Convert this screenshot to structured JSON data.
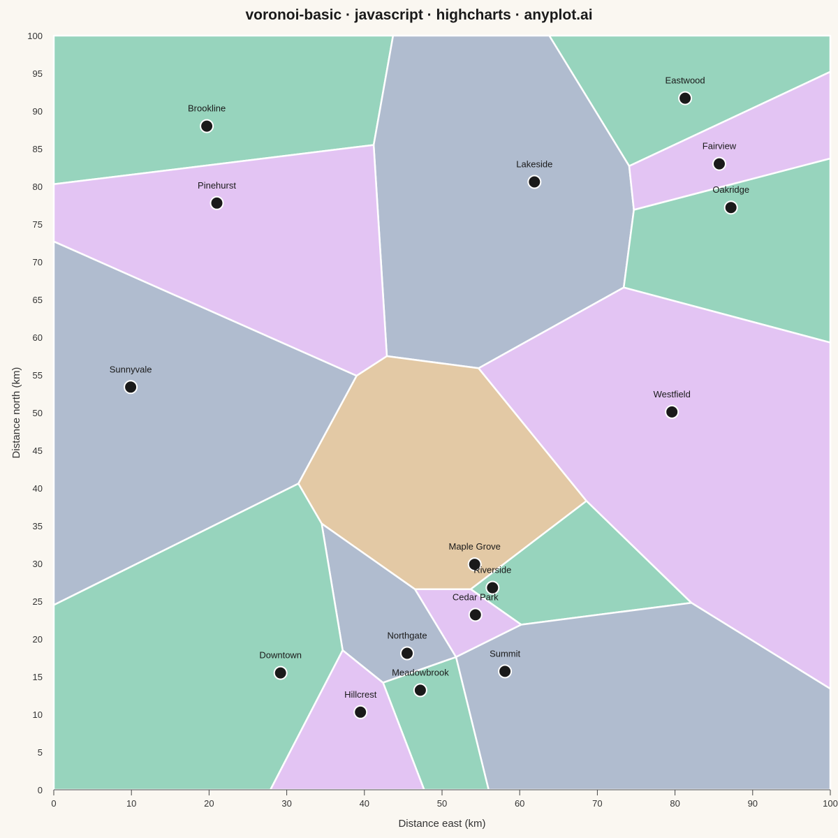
{
  "chart_data": {
    "type": "voronoi",
    "title": "voronoi-basic · javascript · highcharts · anyplot.ai",
    "xlabel": "Distance east (km)",
    "ylabel": "Distance north (km)",
    "xlim": [
      0,
      100
    ],
    "ylim": [
      0,
      100
    ],
    "xticks": [
      0,
      10,
      20,
      30,
      40,
      50,
      60,
      70,
      80,
      90,
      100
    ],
    "yticks": [
      0,
      5,
      10,
      15,
      20,
      25,
      30,
      35,
      40,
      45,
      50,
      55,
      60,
      65,
      70,
      75,
      80,
      85,
      90,
      95,
      100
    ],
    "grid": false,
    "colors": {
      "green": "#97d4bd",
      "slate": "#b0bccf",
      "lilac": "#e3c4f3",
      "tan": "#e3c9a5",
      "point": "#1a1a1a",
      "edge": "#ffffff"
    },
    "sites": [
      {
        "name": "Brookline",
        "x": 19.7,
        "y": 88.0,
        "color": "green",
        "cell": [
          [
            0,
            100
          ],
          [
            43.7,
            100
          ],
          [
            41.2,
            85.5
          ],
          [
            0,
            80.3
          ]
        ]
      },
      {
        "name": "Eastwood",
        "x": 81.3,
        "y": 91.7,
        "color": "green",
        "cell": [
          [
            63.8,
            100
          ],
          [
            100,
            100
          ],
          [
            100,
            95.2
          ],
          [
            74.1,
            82.7
          ]
        ]
      },
      {
        "name": "Lakeside",
        "x": 61.9,
        "y": 80.6,
        "color": "slate",
        "cell": [
          [
            43.7,
            100
          ],
          [
            63.8,
            100
          ],
          [
            74.1,
            82.7
          ],
          [
            74.7,
            76.9
          ],
          [
            73.4,
            66.6
          ],
          [
            54.7,
            55.9
          ],
          [
            42.9,
            57.5
          ],
          [
            41.2,
            85.5
          ]
        ]
      },
      {
        "name": "Fairview",
        "x": 85.7,
        "y": 83.0,
        "color": "lilac",
        "cell": [
          [
            74.1,
            82.7
          ],
          [
            100,
            95.2
          ],
          [
            100,
            83.7
          ],
          [
            74.7,
            76.9
          ]
        ]
      },
      {
        "name": "Oakridge",
        "x": 87.2,
        "y": 77.2,
        "color": "green",
        "cell": [
          [
            74.7,
            76.9
          ],
          [
            100,
            83.7
          ],
          [
            100,
            59.3
          ],
          [
            73.4,
            66.6
          ]
        ]
      },
      {
        "name": "Pinehurst",
        "x": 21.0,
        "y": 77.8,
        "color": "lilac",
        "cell": [
          [
            0,
            80.3
          ],
          [
            41.2,
            85.5
          ],
          [
            42.9,
            57.5
          ],
          [
            39.0,
            54.9
          ],
          [
            0,
            72.7
          ]
        ]
      },
      {
        "name": "Sunnyvale",
        "x": 9.9,
        "y": 53.4,
        "color": "slate",
        "cell": [
          [
            0,
            72.7
          ],
          [
            39.0,
            54.9
          ],
          [
            31.5,
            40.6
          ],
          [
            0,
            24.5
          ]
        ]
      },
      {
        "name": "Westfield",
        "x": 79.6,
        "y": 50.1,
        "color": "lilac",
        "cell": [
          [
            54.7,
            55.9
          ],
          [
            73.4,
            66.6
          ],
          [
            100,
            59.3
          ],
          [
            100,
            13.4
          ],
          [
            82.1,
            24.8
          ],
          [
            68.6,
            38.3
          ]
        ]
      },
      {
        "name": "Maple Grove",
        "x": 54.2,
        "y": 29.9,
        "color": "tan",
        "cell": [
          [
            42.9,
            57.5
          ],
          [
            54.7,
            55.9
          ],
          [
            68.6,
            38.3
          ],
          [
            53.7,
            26.6
          ],
          [
            46.5,
            26.6
          ],
          [
            34.5,
            35.3
          ],
          [
            31.5,
            40.6
          ],
          [
            39.0,
            54.9
          ]
        ]
      },
      {
        "name": "Riverside",
        "x": 56.5,
        "y": 26.8,
        "color": "green",
        "cell": [
          [
            53.7,
            26.6
          ],
          [
            68.6,
            38.3
          ],
          [
            82.1,
            24.8
          ],
          [
            60.2,
            21.9
          ]
        ]
      },
      {
        "name": "Cedar Park",
        "x": 54.3,
        "y": 23.2,
        "color": "lilac",
        "cell": [
          [
            46.5,
            26.6
          ],
          [
            53.7,
            26.6
          ],
          [
            60.2,
            21.9
          ],
          [
            51.8,
            17.6
          ]
        ]
      },
      {
        "name": "Northgate",
        "x": 45.5,
        "y": 18.1,
        "color": "slate",
        "cell": [
          [
            34.5,
            35.3
          ],
          [
            46.5,
            26.6
          ],
          [
            51.8,
            17.6
          ],
          [
            42.4,
            14.2
          ],
          [
            37.2,
            18.5
          ]
        ]
      },
      {
        "name": "Summit",
        "x": 58.1,
        "y": 15.7,
        "color": "slate",
        "cell": [
          [
            51.8,
            17.6
          ],
          [
            60.2,
            21.9
          ],
          [
            82.1,
            24.8
          ],
          [
            100,
            13.4
          ],
          [
            100,
            0
          ],
          [
            56.0,
            0
          ]
        ]
      },
      {
        "name": "Downtown",
        "x": 29.2,
        "y": 15.5,
        "color": "green",
        "cell": [
          [
            0,
            24.5
          ],
          [
            31.5,
            40.6
          ],
          [
            34.5,
            35.3
          ],
          [
            37.2,
            18.5
          ],
          [
            27.9,
            0
          ],
          [
            0,
            0
          ]
        ]
      },
      {
        "name": "Meadowbrook",
        "x": 47.2,
        "y": 13.2,
        "color": "green",
        "cell": [
          [
            42.4,
            14.2
          ],
          [
            51.8,
            17.6
          ],
          [
            56.0,
            0
          ],
          [
            47.7,
            0
          ]
        ]
      },
      {
        "name": "Hillcrest",
        "x": 39.5,
        "y": 10.3,
        "color": "lilac",
        "cell": [
          [
            37.2,
            18.5
          ],
          [
            42.4,
            14.2
          ],
          [
            47.7,
            0
          ],
          [
            27.9,
            0
          ]
        ]
      }
    ]
  }
}
